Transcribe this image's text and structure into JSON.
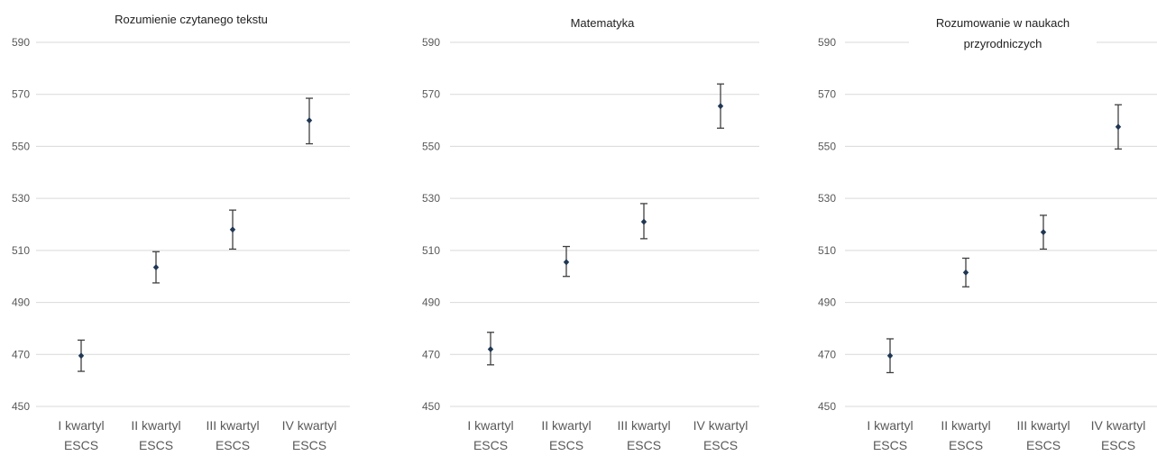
{
  "chart_data": [
    {
      "type": "scatter",
      "title": "Rozumienie czytanego tekstu",
      "categories": [
        [
          "I kwartyl",
          "ESCS"
        ],
        [
          "II kwartyl",
          "ESCS"
        ],
        [
          "III kwartyl",
          "ESCS"
        ],
        [
          "IV kwartyl",
          "ESCS"
        ]
      ],
      "values": [
        469.5,
        503.5,
        518,
        560
      ],
      "error_low": [
        463.5,
        497.5,
        510.5,
        551
      ],
      "error_high": [
        475.5,
        509.5,
        525.5,
        568.5
      ],
      "yticks": [
        450,
        470,
        490,
        510,
        530,
        550,
        570,
        590
      ],
      "ylim": [
        450,
        590
      ],
      "grid": true,
      "colors": {
        "marker": "#1f3756",
        "errorbar": "#404040",
        "grid": "#d9d9d9"
      }
    },
    {
      "type": "scatter",
      "title": "Matematyka",
      "categories": [
        [
          "I kwartyl",
          "ESCS"
        ],
        [
          "II kwartyl",
          "ESCS"
        ],
        [
          "III kwartyl",
          "ESCS"
        ],
        [
          "IV kwartyl",
          "ESCS"
        ]
      ],
      "values": [
        472,
        505.5,
        521,
        565.5
      ],
      "error_low": [
        466,
        500,
        514.5,
        557
      ],
      "error_high": [
        478.5,
        511.5,
        528,
        574
      ],
      "yticks": [
        450,
        470,
        490,
        510,
        530,
        550,
        570,
        590
      ],
      "ylim": [
        450,
        590
      ],
      "grid": true,
      "colors": {
        "marker": "#1f3756",
        "errorbar": "#404040",
        "grid": "#d9d9d9"
      }
    },
    {
      "type": "scatter",
      "title": [
        "Rozumowanie w naukach",
        "przyrodniczych"
      ],
      "categories": [
        [
          "I kwartyl",
          "ESCS"
        ],
        [
          "II kwartyl",
          "ESCS"
        ],
        [
          "III kwartyl",
          "ESCS"
        ],
        [
          "IV kwartyl",
          "ESCS"
        ]
      ],
      "values": [
        469.5,
        501.5,
        517,
        557.5
      ],
      "error_low": [
        463,
        496,
        510.5,
        549
      ],
      "error_high": [
        476,
        507,
        523.5,
        566
      ],
      "yticks": [
        450,
        470,
        490,
        510,
        530,
        550,
        570,
        590
      ],
      "ylim": [
        450,
        590
      ],
      "grid": true,
      "colors": {
        "marker": "#1f3756",
        "errorbar": "#404040",
        "grid": "#d9d9d9"
      }
    }
  ]
}
